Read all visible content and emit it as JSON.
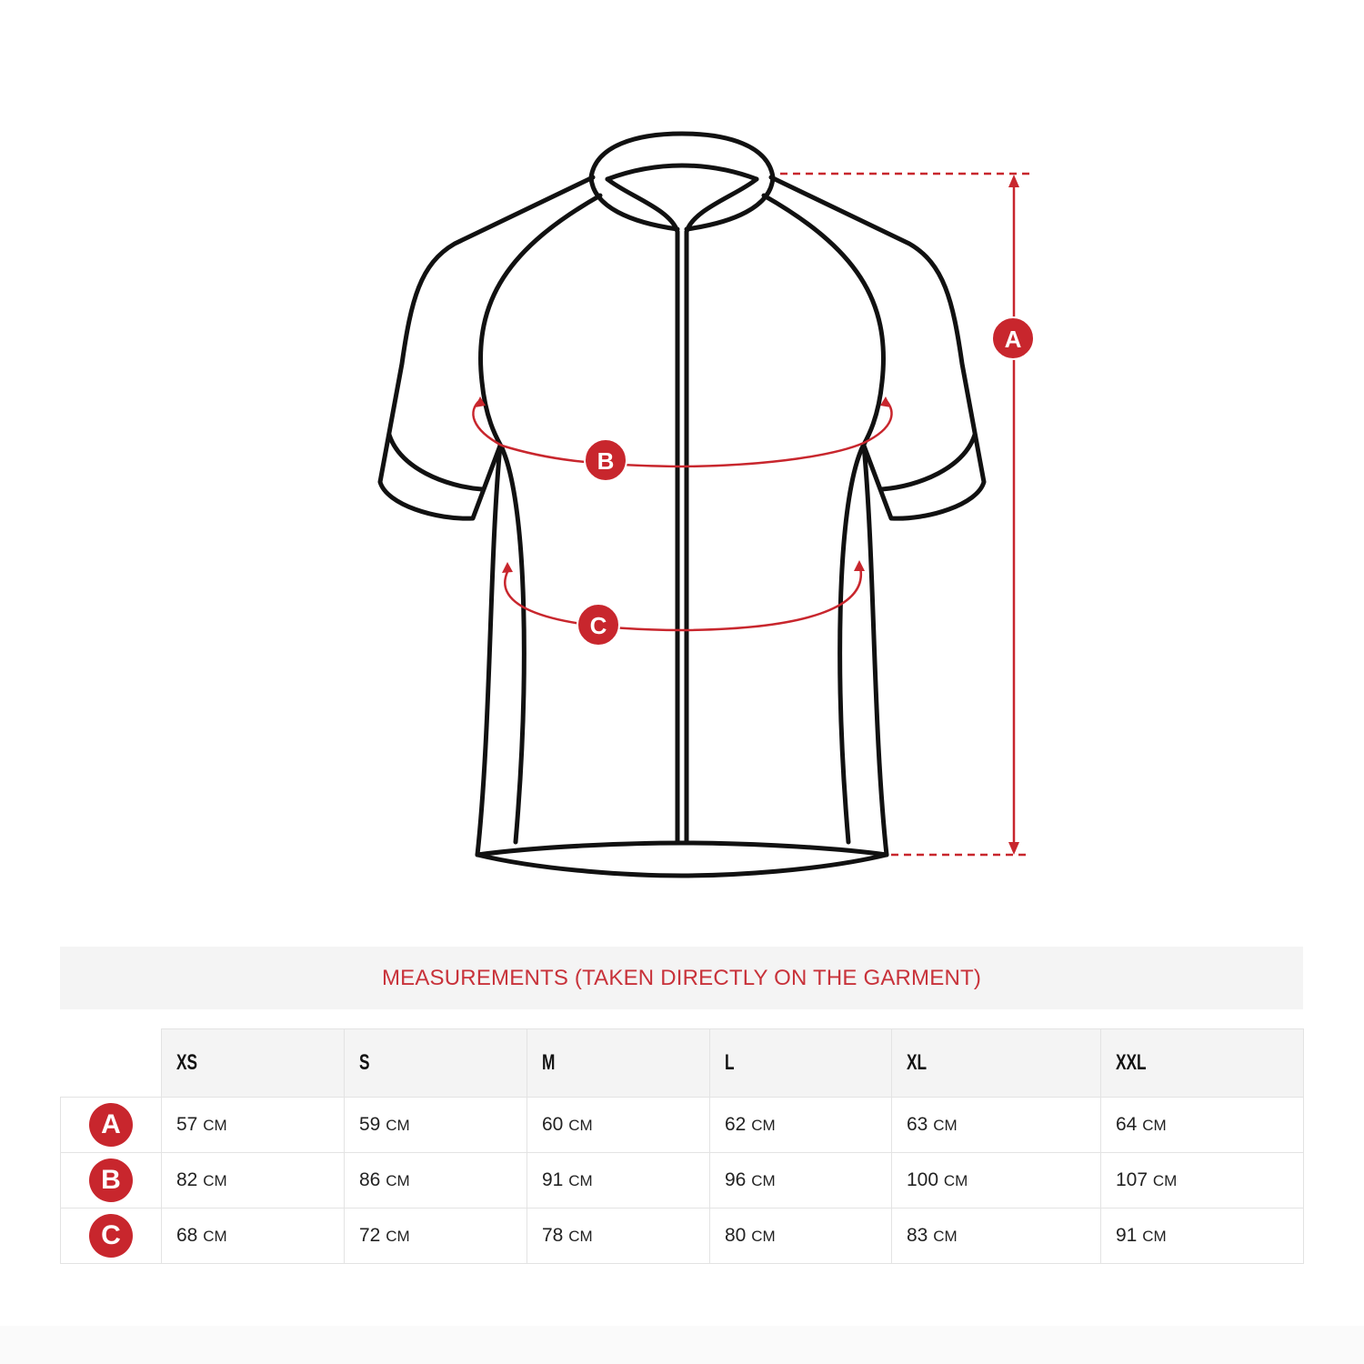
{
  "diagram": {
    "markers": [
      "A",
      "B",
      "C"
    ],
    "accent_color": "#c8262d"
  },
  "banner": {
    "title": "MEASUREMENTS (TAKEN DIRECTLY ON THE GARMENT)"
  },
  "table": {
    "sizes": [
      "XS",
      "S",
      "M",
      "L",
      "XL",
      "XXL"
    ],
    "unit": "CM",
    "rows": [
      {
        "label": "A",
        "values": [
          "57",
          "59",
          "60",
          "62",
          "63",
          "64"
        ]
      },
      {
        "label": "B",
        "values": [
          "82",
          "86",
          "91",
          "96",
          "100",
          "107"
        ]
      },
      {
        "label": "C",
        "values": [
          "68",
          "72",
          "78",
          "80",
          "83",
          "91"
        ]
      }
    ]
  }
}
